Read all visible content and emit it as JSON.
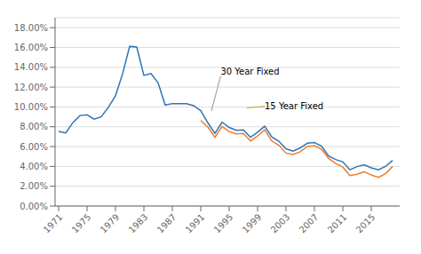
{
  "chart_data": {
    "type": "line",
    "x": [
      1971,
      1972,
      1973,
      1974,
      1975,
      1976,
      1977,
      1978,
      1979,
      1980,
      1981,
      1982,
      1983,
      1984,
      1985,
      1986,
      1987,
      1988,
      1989,
      1990,
      1991,
      1992,
      1993,
      1994,
      1995,
      1996,
      1997,
      1998,
      1999,
      2000,
      2001,
      2002,
      2003,
      2004,
      2005,
      2006,
      2007,
      2008,
      2009,
      2010,
      2011,
      2012,
      2013,
      2014,
      2015,
      2016,
      2017,
      2018
    ],
    "series": [
      {
        "name": "30 Year Fixed",
        "color": "#2E75B6",
        "values": [
          0.0752,
          0.0738,
          0.0841,
          0.0913,
          0.092,
          0.0877,
          0.0902,
          0.0996,
          0.1113,
          0.1334,
          0.1612,
          0.1604,
          0.1318,
          0.1337,
          0.1243,
          0.1019,
          0.1034,
          0.1034,
          0.1032,
          0.1013,
          0.0963,
          0.084,
          0.0733,
          0.0847,
          0.0793,
          0.0765,
          0.0769,
          0.0694,
          0.0745,
          0.0805,
          0.0697,
          0.0654,
          0.0578,
          0.0554,
          0.0587,
          0.0634,
          0.0641,
          0.0604,
          0.0504,
          0.0469,
          0.0445,
          0.0366,
          0.0398,
          0.0417,
          0.0385,
          0.0365,
          0.0399,
          0.046
        ]
      },
      {
        "name": "15 Year Fixed",
        "color": "#ED7D31",
        "values": [
          null,
          null,
          null,
          null,
          null,
          null,
          null,
          null,
          null,
          null,
          null,
          null,
          null,
          null,
          null,
          null,
          null,
          null,
          null,
          null,
          0.0863,
          0.0797,
          0.0694,
          0.0803,
          0.0752,
          0.0729,
          0.0732,
          0.0657,
          0.0706,
          0.077,
          0.0656,
          0.0613,
          0.0534,
          0.0521,
          0.0548,
          0.0601,
          0.0609,
          0.0573,
          0.0481,
          0.0429,
          0.0393,
          0.0308,
          0.032,
          0.0347,
          0.0313,
          0.029,
          0.0326,
          0.04
        ]
      }
    ],
    "xlim": [
      1970.5,
      2019.0
    ],
    "xticks": [
      1971,
      1975,
      1979,
      1983,
      1987,
      1991,
      1995,
      1999,
      2003,
      2007,
      2011,
      2015
    ],
    "ylim": [
      0.0,
      0.19
    ],
    "yticks": [
      {
        "value": 0.0,
        "label": "0.00%"
      },
      {
        "value": 0.02,
        "label": "2.00%"
      },
      {
        "value": 0.04,
        "label": "4.00%"
      },
      {
        "value": 0.06,
        "label": "6.00%"
      },
      {
        "value": 0.08,
        "label": "8.00%"
      },
      {
        "value": 0.1,
        "label": "10.00%"
      },
      {
        "value": 0.12,
        "label": "12.00%"
      },
      {
        "value": 0.14,
        "label": "14.00%"
      },
      {
        "value": 0.16,
        "label": "16.00%"
      },
      {
        "value": 0.18,
        "label": "18.00%"
      }
    ],
    "grid": true,
    "annotations": [
      {
        "text": "30 Year Fixed",
        "x": 1993.8,
        "y": 0.131,
        "target_x": 1992.5,
        "target_y": 0.096,
        "color": "#9E9E9E"
      },
      {
        "text": "15 Year Fixed",
        "x": 2000.0,
        "y": 0.1005,
        "target_x": 1997.5,
        "target_y": 0.099,
        "color": "#C8A040"
      }
    ]
  }
}
